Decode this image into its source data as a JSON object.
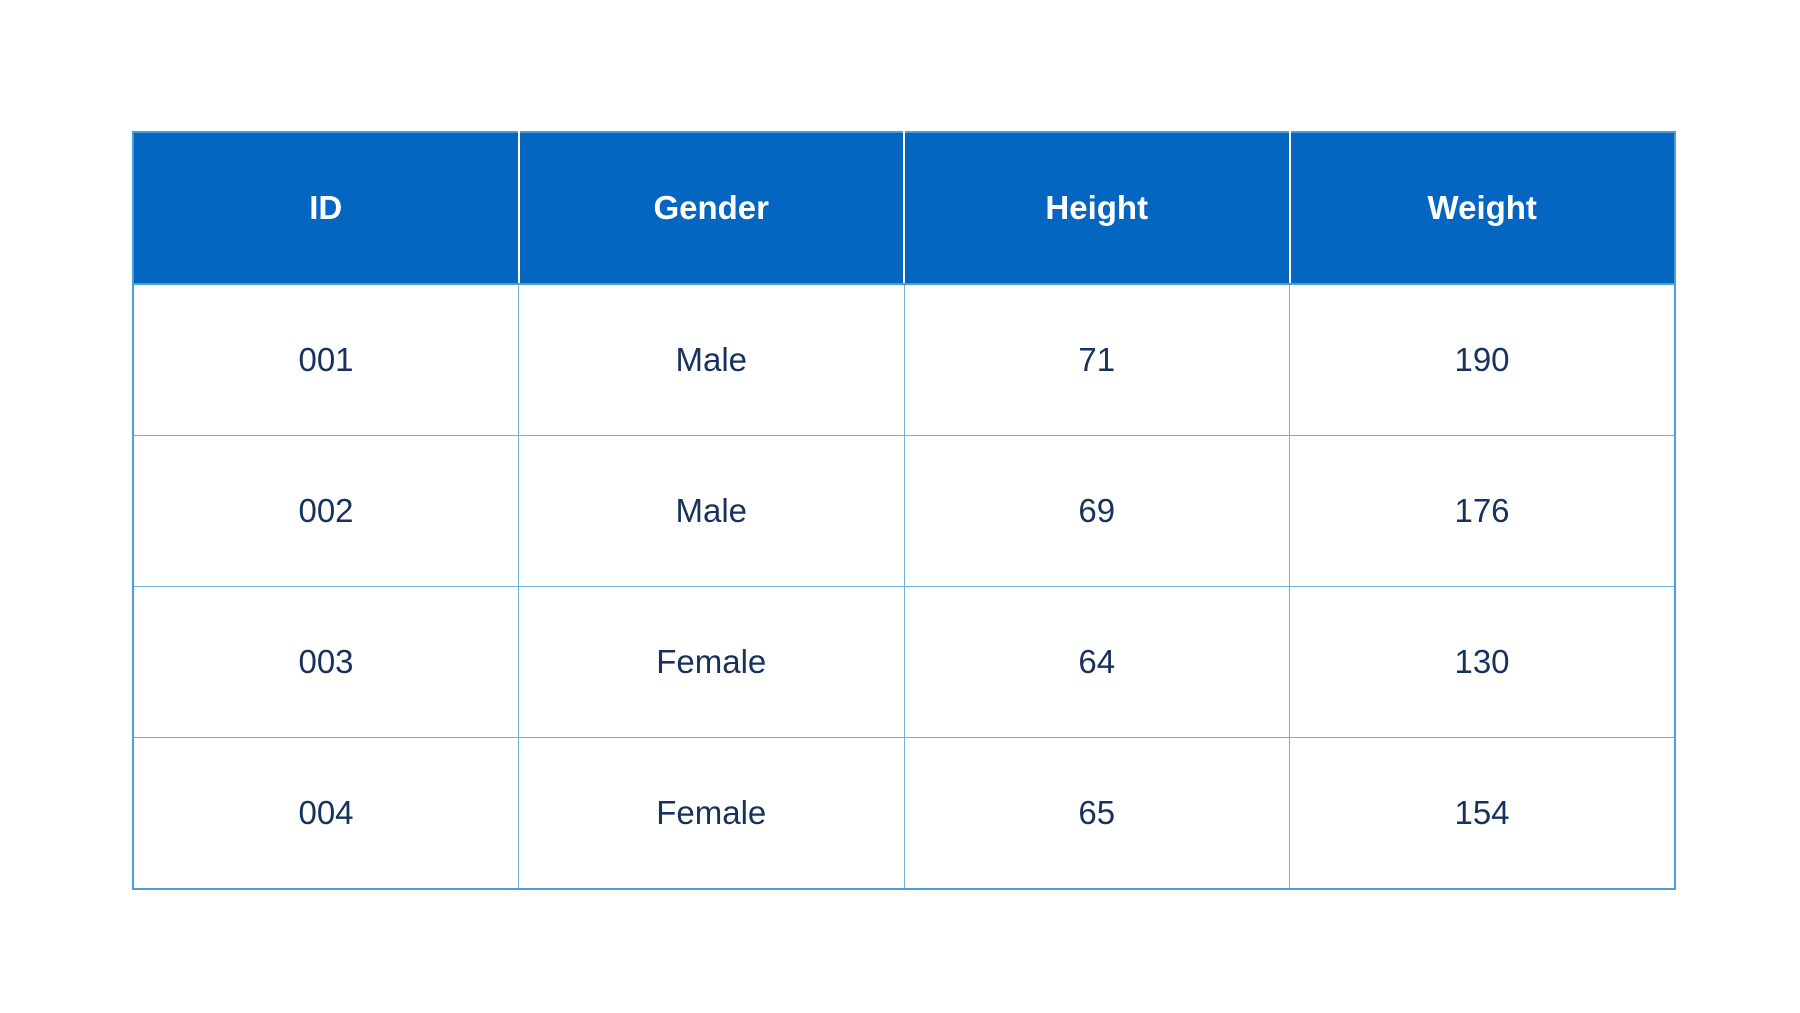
{
  "table": {
    "headers": [
      "ID",
      "Gender",
      "Height",
      "Weight"
    ],
    "rows": [
      [
        "001",
        "Male",
        "71",
        "190"
      ],
      [
        "002",
        "Male",
        "69",
        "176"
      ],
      [
        "003",
        "Female",
        "64",
        "130"
      ],
      [
        "004",
        "Female",
        "65",
        "154"
      ]
    ]
  },
  "colors": {
    "header_background": "#0566c2",
    "header_text": "#ffffff",
    "cell_text": "#17325c",
    "grid_line": "#6fb1e0"
  }
}
